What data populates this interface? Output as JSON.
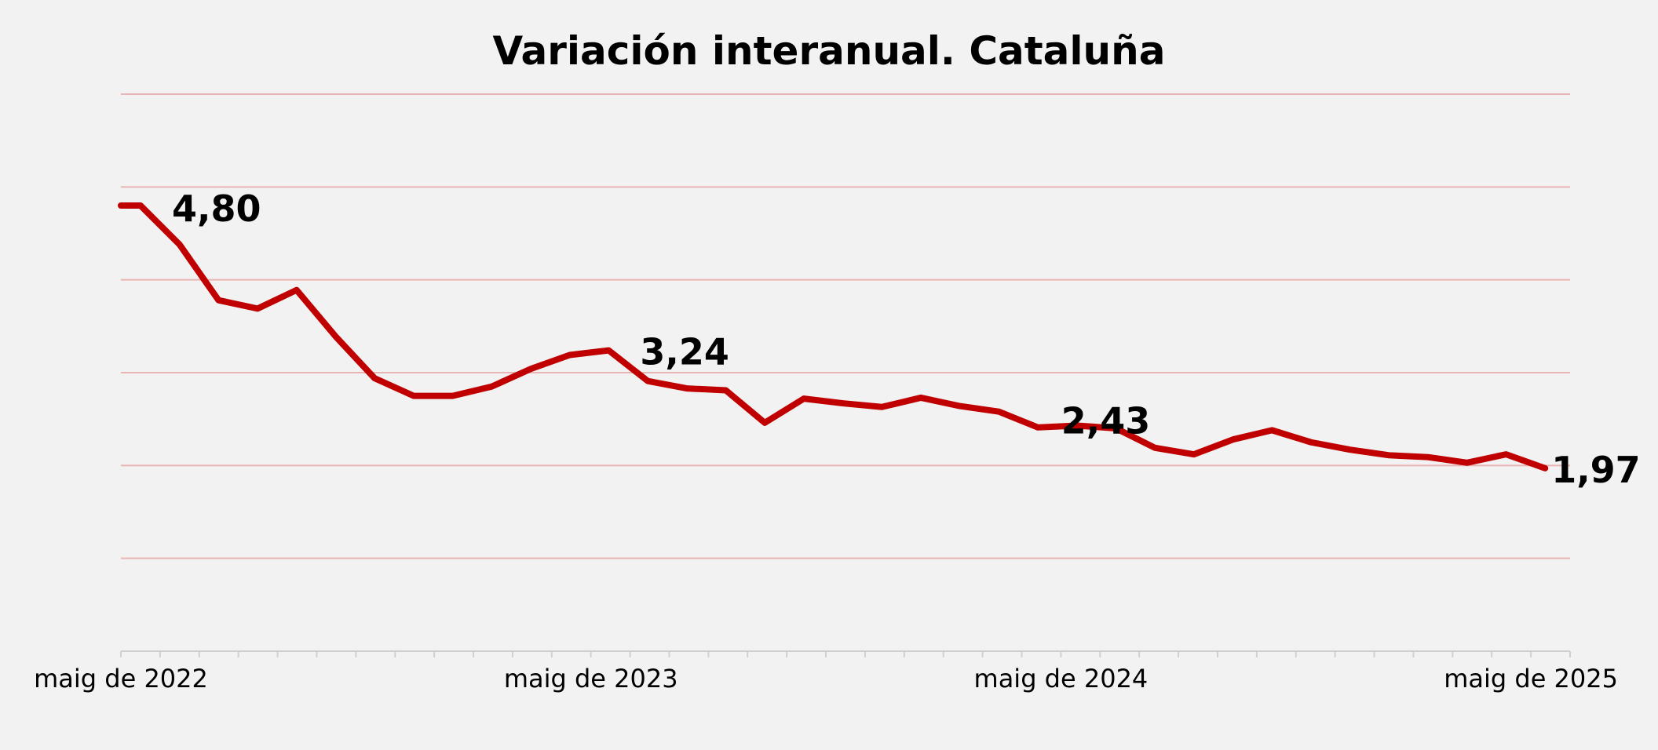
{
  "chart_data": {
    "type": "line",
    "title": "Variación interanual. Cataluña",
    "xlabel": "",
    "ylabel": "",
    "x_tick_labels": [
      "maig de 2022",
      "maig de 2023",
      "maig de 2024",
      "maig de 2025"
    ],
    "ylim": [
      0,
      6
    ],
    "grid": true,
    "series": [
      {
        "color": "#c00000",
        "values": [
          4.8,
          4.8,
          4.38,
          3.78,
          3.69,
          3.89,
          3.39,
          2.94,
          2.75,
          2.75,
          2.85,
          3.04,
          3.19,
          3.24,
          2.91,
          2.83,
          2.81,
          2.46,
          2.72,
          2.67,
          2.63,
          2.73,
          2.64,
          2.58,
          2.41,
          2.43,
          2.4,
          2.19,
          2.12,
          2.28,
          2.38,
          2.25,
          2.17,
          2.11,
          2.09,
          2.03,
          2.12,
          1.97
        ]
      }
    ],
    "data_labels": [
      {
        "index": 1,
        "text": "4,80"
      },
      {
        "index": 13,
        "text": "3,24"
      },
      {
        "index": 25,
        "text": "2,43"
      },
      {
        "index": 37,
        "text": "1,97"
      }
    ],
    "colors": {
      "line": "#c00000",
      "grid": "#e8b4b4",
      "axis": "#d0d0d0",
      "background": "#f2f2f2"
    }
  }
}
